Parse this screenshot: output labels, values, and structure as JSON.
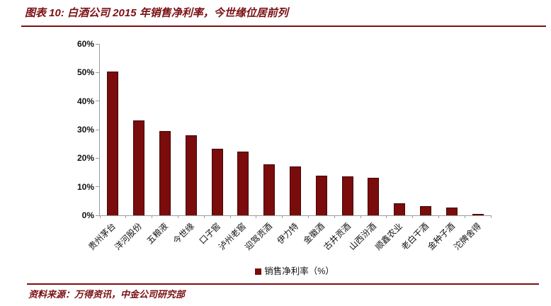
{
  "header": {
    "title": "图表 10: 白酒公司 2015 年销售净利率，今世缘位居前列"
  },
  "footer": {
    "source": "资料来源：万得资讯，中金公司研究部"
  },
  "chart_data": {
    "type": "bar",
    "title": "图表 10: 白酒公司 2015 年销售净利率，今世缘位居前列",
    "categories": [
      "贵州茅台",
      "洋河股份",
      "五粮液",
      "今世缘",
      "口子窖",
      "泸州老窖",
      "迎驾贡酒",
      "伊力特",
      "金徽酒",
      "古井贡酒",
      "山西汾酒",
      "顺鑫农业",
      "老白干酒",
      "金种子酒",
      "沱牌舍得"
    ],
    "values": [
      50.4,
      33.3,
      29.5,
      28.1,
      23.4,
      22.3,
      17.9,
      17.1,
      14.0,
      13.6,
      13.1,
      4.2,
      3.2,
      2.8,
      0.6
    ],
    "legend": [
      "销售净利率（%）"
    ],
    "xlabel": "",
    "ylabel": "",
    "ylim": [
      0,
      60
    ],
    "ytick_step": 10,
    "ytick_labels": [
      "0%",
      "10%",
      "20%",
      "30%",
      "40%",
      "50%",
      "60%"
    ],
    "grid": false,
    "legend_position": "bottom-center",
    "bar_color": "#7b0c0c",
    "accent_color": "#7a1014",
    "axis_color": "#9b9b9b"
  }
}
